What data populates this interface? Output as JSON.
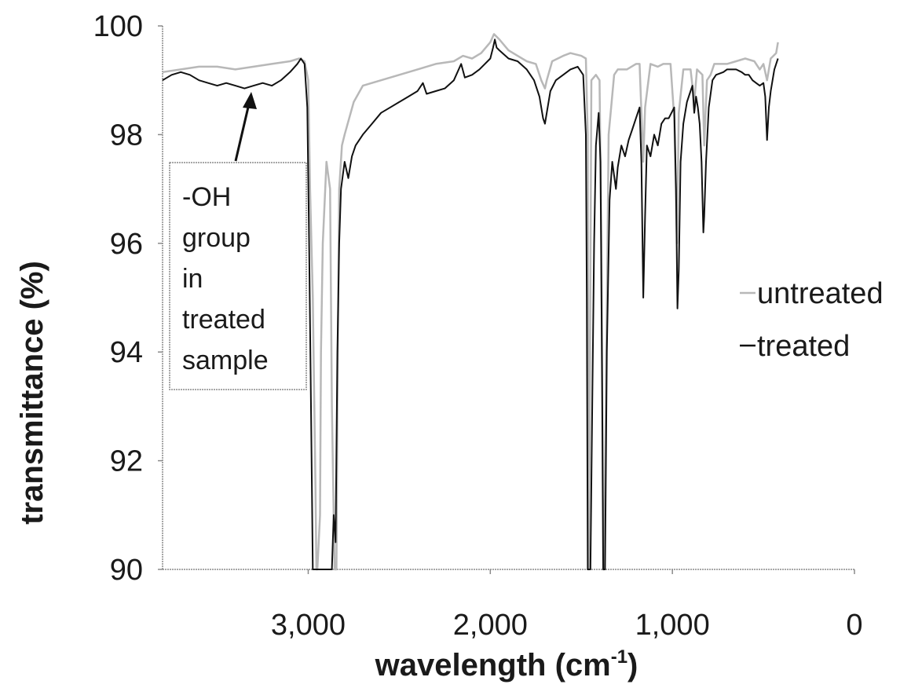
{
  "chart_data": {
    "type": "line",
    "title": "",
    "xlabel": "wavelength (cm",
    "xlabel_sup": "-1",
    "xlabel_close": ")",
    "ylabel": "transmittance (%)",
    "xlim": [
      3800,
      0
    ],
    "ylim": [
      90,
      100
    ],
    "x_reversed": true,
    "x_ticks": [
      3000,
      2000,
      1000,
      0
    ],
    "x_tick_labels": [
      "3,000",
      "2,000",
      "1,000",
      "0"
    ],
    "y_ticks": [
      90,
      92,
      94,
      96,
      98,
      100
    ],
    "y_tick_labels": [
      "90",
      "92",
      "94",
      "96",
      "98",
      "100"
    ],
    "grid": false,
    "legend_position": "right",
    "series": [
      {
        "name": "untreated",
        "color": "#b8b8b8",
        "points": [
          [
            3800,
            99.15
          ],
          [
            3700,
            99.2
          ],
          [
            3600,
            99.25
          ],
          [
            3500,
            99.25
          ],
          [
            3400,
            99.2
          ],
          [
            3300,
            99.25
          ],
          [
            3200,
            99.3
          ],
          [
            3100,
            99.35
          ],
          [
            3050,
            99.4
          ],
          [
            3020,
            99.35
          ],
          [
            3000,
            99.0
          ],
          [
            2990,
            97.0
          ],
          [
            2975,
            95.0
          ],
          [
            2960,
            91.5
          ],
          [
            2955,
            90.0
          ],
          [
            2950,
            90.0
          ],
          [
            2935,
            91.0
          ],
          [
            2930,
            94.0
          ],
          [
            2920,
            96.0
          ],
          [
            2900,
            97.5
          ],
          [
            2880,
            97.0
          ],
          [
            2870,
            93.0
          ],
          [
            2860,
            91.0
          ],
          [
            2855,
            90.0
          ],
          [
            2845,
            90.0
          ],
          [
            2840,
            93.0
          ],
          [
            2830,
            97.0
          ],
          [
            2815,
            97.8
          ],
          [
            2800,
            98.0
          ],
          [
            2750,
            98.6
          ],
          [
            2700,
            98.9
          ],
          [
            2600,
            99.0
          ],
          [
            2500,
            99.1
          ],
          [
            2400,
            99.2
          ],
          [
            2300,
            99.3
          ],
          [
            2200,
            99.35
          ],
          [
            2150,
            99.45
          ],
          [
            2100,
            99.4
          ],
          [
            2050,
            99.5
          ],
          [
            2000,
            99.7
          ],
          [
            1980,
            99.85
          ],
          [
            1950,
            99.75
          ],
          [
            1900,
            99.55
          ],
          [
            1850,
            99.45
          ],
          [
            1800,
            99.35
          ],
          [
            1750,
            99.3
          ],
          [
            1720,
            99.0
          ],
          [
            1700,
            98.85
          ],
          [
            1690,
            99.0
          ],
          [
            1660,
            99.35
          ],
          [
            1600,
            99.45
          ],
          [
            1560,
            99.5
          ],
          [
            1500,
            99.45
          ],
          [
            1475,
            99.4
          ],
          [
            1465,
            98.0
          ],
          [
            1460,
            90.0
          ],
          [
            1455,
            92.0
          ],
          [
            1445,
            99.0
          ],
          [
            1420,
            99.1
          ],
          [
            1400,
            99.0
          ],
          [
            1390,
            96.0
          ],
          [
            1380,
            90.0
          ],
          [
            1375,
            90.0
          ],
          [
            1365,
            93.0
          ],
          [
            1350,
            98.0
          ],
          [
            1320,
            99.1
          ],
          [
            1300,
            99.2
          ],
          [
            1250,
            99.2
          ],
          [
            1200,
            99.3
          ],
          [
            1180,
            99.3
          ],
          [
            1160,
            97.5
          ],
          [
            1150,
            98.5
          ],
          [
            1120,
            99.3
          ],
          [
            1080,
            99.25
          ],
          [
            1050,
            99.3
          ],
          [
            1010,
            99.3
          ],
          [
            990,
            98.3
          ],
          [
            975,
            96.0
          ],
          [
            965,
            98.4
          ],
          [
            940,
            99.2
          ],
          [
            900,
            99.2
          ],
          [
            880,
            98.6
          ],
          [
            865,
            99.2
          ],
          [
            835,
            99.1
          ],
          [
            825,
            97.8
          ],
          [
            810,
            99.0
          ],
          [
            790,
            99.1
          ],
          [
            770,
            99.3
          ],
          [
            700,
            99.3
          ],
          [
            650,
            99.35
          ],
          [
            600,
            99.4
          ],
          [
            550,
            99.35
          ],
          [
            520,
            99.2
          ],
          [
            500,
            99.3
          ],
          [
            480,
            99.0
          ],
          [
            460,
            99.4
          ],
          [
            430,
            99.5
          ],
          [
            420,
            99.7
          ]
        ]
      },
      {
        "name": "treated",
        "color": "#111111",
        "points": [
          [
            3800,
            99.0
          ],
          [
            3750,
            99.1
          ],
          [
            3700,
            99.15
          ],
          [
            3650,
            99.1
          ],
          [
            3600,
            99.0
          ],
          [
            3550,
            98.95
          ],
          [
            3500,
            98.9
          ],
          [
            3450,
            98.95
          ],
          [
            3400,
            98.9
          ],
          [
            3350,
            98.85
          ],
          [
            3300,
            98.9
          ],
          [
            3250,
            98.95
          ],
          [
            3200,
            98.9
          ],
          [
            3150,
            99.0
          ],
          [
            3100,
            99.15
          ],
          [
            3060,
            99.3
          ],
          [
            3040,
            99.4
          ],
          [
            3020,
            99.3
          ],
          [
            3005,
            98.5
          ],
          [
            2995,
            96.0
          ],
          [
            2985,
            93.0
          ],
          [
            2975,
            90.0
          ],
          [
            2965,
            90.0
          ],
          [
            2920,
            90.0
          ],
          [
            2880,
            90.0
          ],
          [
            2870,
            90.0
          ],
          [
            2860,
            91.0
          ],
          [
            2850,
            90.5
          ],
          [
            2840,
            94.0
          ],
          [
            2830,
            96.0
          ],
          [
            2820,
            97.0
          ],
          [
            2800,
            97.5
          ],
          [
            2780,
            97.2
          ],
          [
            2760,
            97.6
          ],
          [
            2740,
            97.8
          ],
          [
            2700,
            98.0
          ],
          [
            2650,
            98.2
          ],
          [
            2600,
            98.4
          ],
          [
            2550,
            98.5
          ],
          [
            2500,
            98.6
          ],
          [
            2450,
            98.7
          ],
          [
            2400,
            98.8
          ],
          [
            2370,
            98.95
          ],
          [
            2350,
            98.75
          ],
          [
            2300,
            98.8
          ],
          [
            2250,
            98.85
          ],
          [
            2200,
            99.0
          ],
          [
            2160,
            99.3
          ],
          [
            2140,
            99.05
          ],
          [
            2100,
            99.1
          ],
          [
            2060,
            99.2
          ],
          [
            2030,
            99.3
          ],
          [
            2000,
            99.4
          ],
          [
            1985,
            99.6
          ],
          [
            1975,
            99.75
          ],
          [
            1965,
            99.6
          ],
          [
            1950,
            99.55
          ],
          [
            1900,
            99.4
          ],
          [
            1850,
            99.35
          ],
          [
            1800,
            99.2
          ],
          [
            1760,
            99.0
          ],
          [
            1730,
            98.7
          ],
          [
            1710,
            98.3
          ],
          [
            1700,
            98.2
          ],
          [
            1690,
            98.4
          ],
          [
            1670,
            98.8
          ],
          [
            1640,
            99.0
          ],
          [
            1600,
            99.1
          ],
          [
            1560,
            99.2
          ],
          [
            1520,
            99.25
          ],
          [
            1490,
            99.1
          ],
          [
            1475,
            98.0
          ],
          [
            1470,
            95.0
          ],
          [
            1465,
            90.0
          ],
          [
            1455,
            90.0
          ],
          [
            1450,
            90.0
          ],
          [
            1440,
            93.0
          ],
          [
            1430,
            96.0
          ],
          [
            1420,
            97.8
          ],
          [
            1405,
            98.4
          ],
          [
            1395,
            97.5
          ],
          [
            1385,
            93.0
          ],
          [
            1380,
            90.0
          ],
          [
            1370,
            90.0
          ],
          [
            1360,
            94.0
          ],
          [
            1345,
            96.8
          ],
          [
            1330,
            97.5
          ],
          [
            1310,
            97.0
          ],
          [
            1300,
            97.4
          ],
          [
            1280,
            97.8
          ],
          [
            1260,
            97.6
          ],
          [
            1240,
            97.9
          ],
          [
            1220,
            98.1
          ],
          [
            1200,
            98.3
          ],
          [
            1180,
            98.5
          ],
          [
            1170,
            97.5
          ],
          [
            1160,
            95.0
          ],
          [
            1150,
            96.5
          ],
          [
            1140,
            97.8
          ],
          [
            1120,
            97.6
          ],
          [
            1100,
            98.0
          ],
          [
            1080,
            97.8
          ],
          [
            1060,
            98.2
          ],
          [
            1040,
            98.3
          ],
          [
            1020,
            98.3
          ],
          [
            1005,
            98.4
          ],
          [
            990,
            98.5
          ],
          [
            980,
            97.0
          ],
          [
            972,
            94.8
          ],
          [
            965,
            95.5
          ],
          [
            955,
            97.5
          ],
          [
            940,
            98.2
          ],
          [
            920,
            98.6
          ],
          [
            900,
            98.8
          ],
          [
            890,
            98.9
          ],
          [
            880,
            98.4
          ],
          [
            870,
            98.7
          ],
          [
            860,
            98.5
          ],
          [
            850,
            98.2
          ],
          [
            840,
            97.5
          ],
          [
            830,
            96.2
          ],
          [
            825,
            96.5
          ],
          [
            815,
            97.5
          ],
          [
            800,
            98.5
          ],
          [
            780,
            99.0
          ],
          [
            760,
            99.1
          ],
          [
            720,
            99.15
          ],
          [
            700,
            99.2
          ],
          [
            650,
            99.2
          ],
          [
            620,
            99.15
          ],
          [
            600,
            99.1
          ],
          [
            580,
            99.1
          ],
          [
            560,
            99.0
          ],
          [
            540,
            98.95
          ],
          [
            520,
            98.9
          ],
          [
            500,
            98.95
          ],
          [
            490,
            98.7
          ],
          [
            480,
            97.9
          ],
          [
            470,
            98.5
          ],
          [
            460,
            98.8
          ],
          [
            450,
            99.0
          ],
          [
            440,
            99.2
          ],
          [
            430,
            99.3
          ],
          [
            420,
            99.4
          ]
        ]
      }
    ],
    "annotation": {
      "lines": [
        "-OH",
        "group",
        "in",
        "treated",
        "sample"
      ],
      "arrow_target": [
        3320,
        98.85
      ]
    }
  }
}
